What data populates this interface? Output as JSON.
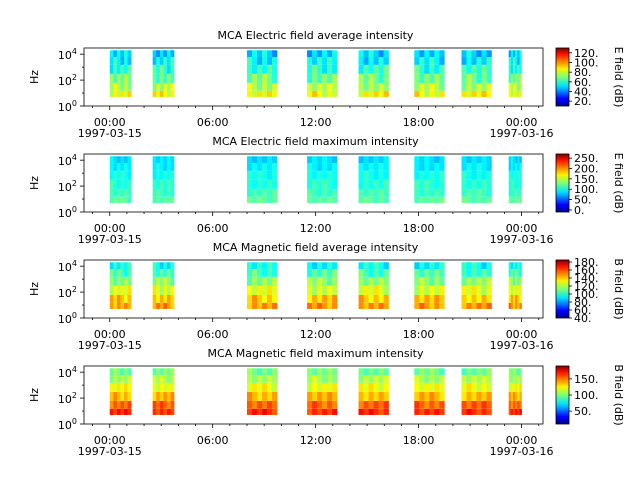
{
  "chart_data": [
    {
      "type": "heatmap",
      "title": "MCA  Electric field average intensity",
      "ylabel": "Hz",
      "yscale": "log",
      "ylim": [
        1,
        30000
      ],
      "y_ticks": [
        {
          "base": "10",
          "exp": "0",
          "value": 1
        },
        {
          "base": "10",
          "exp": "2",
          "value": 100
        },
        {
          "base": "10",
          "exp": "4",
          "value": 10000
        }
      ],
      "xlim": [
        "1997-03-14T22:30",
        "1997-03-16T01:15"
      ],
      "x_ticks": [
        {
          "time": "1997-03-15T00:00",
          "label": "00:00",
          "date": "1997-03-15"
        },
        {
          "time": "1997-03-15T06:00",
          "label": "06:00",
          "date": ""
        },
        {
          "time": "1997-03-15T12:00",
          "label": "12:00",
          "date": ""
        },
        {
          "time": "1997-03-15T18:00",
          "label": "18:00",
          "date": ""
        },
        {
          "time": "1997-03-16T00:00",
          "label": "00:00",
          "date": "1997-03-16"
        }
      ],
      "colorbar": {
        "label": "E field (dB)",
        "vmin": 10,
        "vmax": 130,
        "ticks": [
          "20.",
          "40.",
          "60.",
          "80.",
          "100.",
          "120."
        ],
        "tick_values": [
          20,
          40,
          60,
          80,
          100,
          120
        ]
      },
      "segments": [
        {
          "start": "1997-03-15T00:00",
          "end": "1997-03-15T01:15"
        },
        {
          "start": "1997-03-15T02:30",
          "end": "1997-03-15T03:45"
        },
        {
          "start": "1997-03-15T08:00",
          "end": "1997-03-15T09:45"
        },
        {
          "start": "1997-03-15T11:30",
          "end": "1997-03-15T13:15"
        },
        {
          "start": "1997-03-15T14:30",
          "end": "1997-03-15T16:15"
        },
        {
          "start": "1997-03-15T17:45",
          "end": "1997-03-15T19:30"
        },
        {
          "start": "1997-03-15T20:30",
          "end": "1997-03-15T22:15"
        },
        {
          "start": "1997-03-15T23:15",
          "end": "1997-03-16T00:00"
        }
      ],
      "freq_rows": [
        {
          "f_low": 5,
          "f_high": 15,
          "level": 84
        },
        {
          "f_low": 15,
          "f_high": 60,
          "level": 76
        },
        {
          "f_low": 60,
          "f_high": 300,
          "level": 68
        },
        {
          "f_low": 300,
          "f_high": 1500,
          "level": 60
        },
        {
          "f_low": 1500,
          "f_high": 6000,
          "level": 54
        },
        {
          "f_low": 6000,
          "f_high": 20000,
          "level": 50
        }
      ]
    },
    {
      "type": "heatmap",
      "title": "MCA  Electric field maximum intensity",
      "ylabel": "Hz",
      "yscale": "log",
      "ylim": [
        1,
        30000
      ],
      "y_ticks": [
        {
          "base": "10",
          "exp": "0",
          "value": 1
        },
        {
          "base": "10",
          "exp": "2",
          "value": 100
        },
        {
          "base": "10",
          "exp": "4",
          "value": 10000
        }
      ],
      "xlim": [
        "1997-03-14T22:30",
        "1997-03-16T01:15"
      ],
      "x_ticks": [
        {
          "time": "1997-03-15T00:00",
          "label": "00:00",
          "date": "1997-03-15"
        },
        {
          "time": "1997-03-15T06:00",
          "label": "06:00",
          "date": ""
        },
        {
          "time": "1997-03-15T12:00",
          "label": "12:00",
          "date": ""
        },
        {
          "time": "1997-03-15T18:00",
          "label": "18:00",
          "date": ""
        },
        {
          "time": "1997-03-16T00:00",
          "label": "00:00",
          "date": "1997-03-16"
        }
      ],
      "colorbar": {
        "label": "E field (dB)",
        "vmin": -10,
        "vmax": 270,
        "ticks": [
          "0.",
          "50.",
          "100.",
          "150.",
          "200.",
          "250."
        ],
        "tick_values": [
          0,
          50,
          100,
          150,
          200,
          250
        ]
      },
      "segments": [
        {
          "start": "1997-03-15T00:00",
          "end": "1997-03-15T01:15"
        },
        {
          "start": "1997-03-15T02:30",
          "end": "1997-03-15T03:45"
        },
        {
          "start": "1997-03-15T08:00",
          "end": "1997-03-15T09:45"
        },
        {
          "start": "1997-03-15T11:30",
          "end": "1997-03-15T13:15"
        },
        {
          "start": "1997-03-15T14:30",
          "end": "1997-03-15T16:15"
        },
        {
          "start": "1997-03-15T17:45",
          "end": "1997-03-15T19:30"
        },
        {
          "start": "1997-03-15T20:30",
          "end": "1997-03-15T22:15"
        },
        {
          "start": "1997-03-15T23:15",
          "end": "1997-03-16T00:00"
        }
      ],
      "freq_rows": [
        {
          "f_low": 5,
          "f_high": 15,
          "level": 120
        },
        {
          "f_low": 15,
          "f_high": 60,
          "level": 112
        },
        {
          "f_low": 60,
          "f_high": 300,
          "level": 106
        },
        {
          "f_low": 300,
          "f_high": 1500,
          "level": 100
        },
        {
          "f_low": 1500,
          "f_high": 6000,
          "level": 92
        },
        {
          "f_low": 6000,
          "f_high": 20000,
          "level": 86
        }
      ]
    },
    {
      "type": "heatmap",
      "title": "MCA  Magnetic field average intensity",
      "ylabel": "Hz",
      "yscale": "log",
      "ylim": [
        1,
        30000
      ],
      "y_ticks": [
        {
          "base": "10",
          "exp": "0",
          "value": 1
        },
        {
          "base": "10",
          "exp": "2",
          "value": 100
        },
        {
          "base": "10",
          "exp": "4",
          "value": 10000
        }
      ],
      "xlim": [
        "1997-03-14T22:30",
        "1997-03-16T01:15"
      ],
      "x_ticks": [
        {
          "time": "1997-03-15T00:00",
          "label": "00:00",
          "date": "1997-03-15"
        },
        {
          "time": "1997-03-15T06:00",
          "label": "06:00",
          "date": ""
        },
        {
          "time": "1997-03-15T12:00",
          "label": "12:00",
          "date": ""
        },
        {
          "time": "1997-03-15T18:00",
          "label": "18:00",
          "date": ""
        },
        {
          "time": "1997-03-16T00:00",
          "label": "00:00",
          "date": "1997-03-16"
        }
      ],
      "colorbar": {
        "label": "B field (dB)",
        "vmin": 40,
        "vmax": 185,
        "ticks": [
          "40.",
          "60.",
          "80.",
          "100.",
          "120.",
          "140.",
          "160.",
          "180."
        ],
        "tick_values": [
          40,
          60,
          80,
          100,
          120,
          140,
          160,
          180
        ]
      },
      "segments": [
        {
          "start": "1997-03-15T00:00",
          "end": "1997-03-15T01:15"
        },
        {
          "start": "1997-03-15T02:30",
          "end": "1997-03-15T03:45"
        },
        {
          "start": "1997-03-15T08:00",
          "end": "1997-03-15T09:45"
        },
        {
          "start": "1997-03-15T11:30",
          "end": "1997-03-15T13:15"
        },
        {
          "start": "1997-03-15T14:30",
          "end": "1997-03-15T16:15"
        },
        {
          "start": "1997-03-15T17:45",
          "end": "1997-03-15T19:30"
        },
        {
          "start": "1997-03-15T20:30",
          "end": "1997-03-15T22:15"
        },
        {
          "start": "1997-03-15T23:15",
          "end": "1997-03-16T00:00"
        }
      ],
      "freq_rows": [
        {
          "f_low": 5,
          "f_high": 15,
          "level": 145
        },
        {
          "f_low": 15,
          "f_high": 60,
          "level": 138
        },
        {
          "f_low": 60,
          "f_high": 300,
          "level": 126
        },
        {
          "f_low": 300,
          "f_high": 1500,
          "level": 115
        },
        {
          "f_low": 1500,
          "f_high": 6000,
          "level": 104
        },
        {
          "f_low": 6000,
          "f_high": 20000,
          "level": 96
        }
      ]
    },
    {
      "type": "heatmap",
      "title": "MCA  Magnetic field maximum intensity",
      "ylabel": "Hz",
      "yscale": "log",
      "ylim": [
        1,
        30000
      ],
      "y_ticks": [
        {
          "base": "10",
          "exp": "0",
          "value": 1
        },
        {
          "base": "10",
          "exp": "2",
          "value": 100
        },
        {
          "base": "10",
          "exp": "4",
          "value": 10000
        }
      ],
      "xlim": [
        "1997-03-14T22:30",
        "1997-03-16T01:15"
      ],
      "x_ticks": [
        {
          "time": "1997-03-15T00:00",
          "label": "00:00",
          "date": "1997-03-15"
        },
        {
          "time": "1997-03-15T06:00",
          "label": "06:00",
          "date": ""
        },
        {
          "time": "1997-03-15T12:00",
          "label": "12:00",
          "date": ""
        },
        {
          "time": "1997-03-15T18:00",
          "label": "18:00",
          "date": ""
        },
        {
          "time": "1997-03-16T00:00",
          "label": "00:00",
          "date": "1997-03-16"
        }
      ],
      "colorbar": {
        "label": "B field (dB)",
        "vmin": 10,
        "vmax": 190,
        "ticks": [
          "50.",
          "100.",
          "150."
        ],
        "tick_values": [
          50,
          100,
          150
        ]
      },
      "segments": [
        {
          "start": "1997-03-15T00:00",
          "end": "1997-03-15T01:15"
        },
        {
          "start": "1997-03-15T02:30",
          "end": "1997-03-15T03:45"
        },
        {
          "start": "1997-03-15T08:00",
          "end": "1997-03-15T09:45"
        },
        {
          "start": "1997-03-15T11:30",
          "end": "1997-03-15T13:15"
        },
        {
          "start": "1997-03-15T14:30",
          "end": "1997-03-15T16:15"
        },
        {
          "start": "1997-03-15T17:45",
          "end": "1997-03-15T19:30"
        },
        {
          "start": "1997-03-15T20:30",
          "end": "1997-03-15T22:15"
        },
        {
          "start": "1997-03-15T23:15",
          "end": "1997-03-16T00:00"
        }
      ],
      "freq_rows": [
        {
          "f_low": 5,
          "f_high": 15,
          "level": 160
        },
        {
          "f_low": 15,
          "f_high": 60,
          "level": 150
        },
        {
          "f_low": 60,
          "f_high": 300,
          "level": 135
        },
        {
          "f_low": 300,
          "f_high": 1500,
          "level": 120
        },
        {
          "f_low": 1500,
          "f_high": 6000,
          "level": 108
        },
        {
          "f_low": 6000,
          "f_high": 20000,
          "level": 98
        }
      ]
    }
  ]
}
